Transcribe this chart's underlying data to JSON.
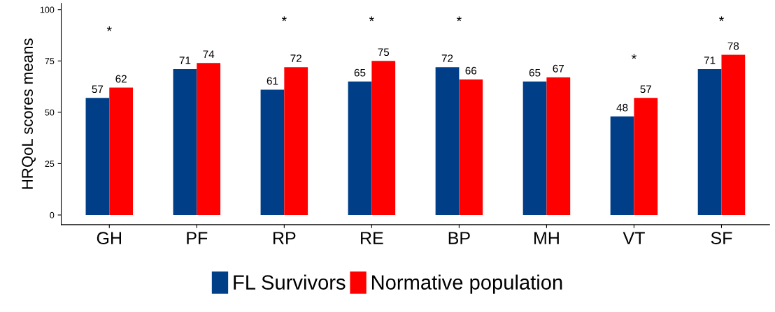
{
  "chart_data": {
    "type": "bar",
    "ylabel": "HRQoL scores means",
    "categories": [
      "GH",
      "PF",
      "RP",
      "RE",
      "BP",
      "MH",
      "VT",
      "SF"
    ],
    "series": [
      {
        "name": "FL Survivors",
        "color": "#003f87",
        "values": [
          57,
          71,
          61,
          65,
          72,
          65,
          48,
          71
        ]
      },
      {
        "name": "Normative population",
        "color": "#ff0000",
        "values": [
          62,
          74,
          72,
          75,
          66,
          67,
          57,
          78
        ]
      }
    ],
    "ylim": [
      -4.7,
      103
    ],
    "yticks": [
      0,
      25,
      50,
      75,
      100
    ],
    "grid": false,
    "legend": "bottom",
    "data_labels": true,
    "annotations": [
      "*",
      "*",
      "*",
      "*",
      "*",
      "*"
    ]
  }
}
